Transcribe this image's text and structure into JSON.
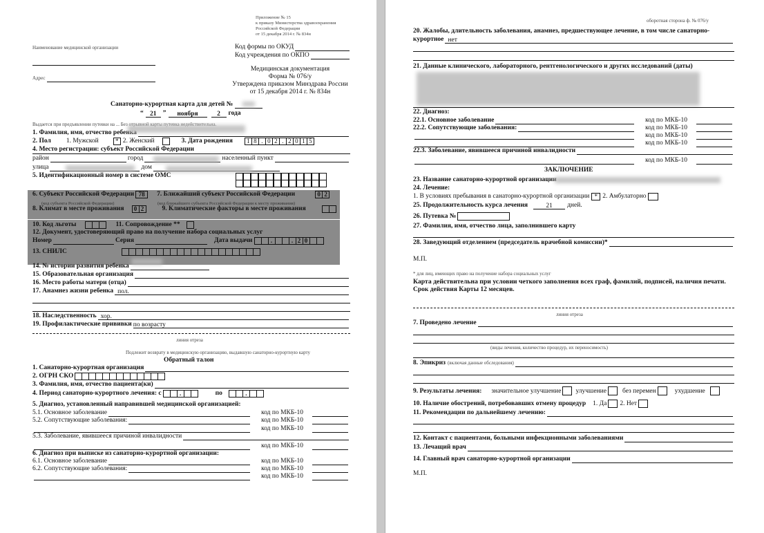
{
  "left": {
    "appendix": [
      "Приложение № 15",
      "к приказу Министерства здравоохранения",
      "Российской Федерации",
      "от 15 декабря 2014 г. № 834н"
    ],
    "org_name_label": "Наименование медицинской организации",
    "okud_label": "Код формы по ОКУД",
    "okpo_label": "Код учреждения по ОКПО",
    "address_label": "Адрес",
    "doc_info": [
      "Медицинская документация",
      "Форма № 076/у",
      "Утверждена приказом Минздрава России",
      "от 15 декабря 2014 г. № 834н"
    ],
    "title": "Санаторно-курортная карта для детей №",
    "date_day": "21",
    "date_month": "ноября",
    "date_year_suffix": "года",
    "issued_note": "Выдается при предъявлении путевки на ... Без отрывной карты путевка недействительна.",
    "f1": "1. Фамилия, имя, отчество ребенка",
    "f2": "2. Пол",
    "male": "1. Мужской",
    "male_mark": "*",
    "female": "2. Женский",
    "f3": "3. Дата рождения",
    "birth_date": [
      "1",
      "8",
      ".",
      "0",
      "2",
      ".",
      "2",
      "0",
      "1",
      "5"
    ],
    "f4": "4. Место регистрации: субъект Российской Федерации",
    "district": "район",
    "city": "город",
    "settlement": "населенный пункт",
    "street": "улица",
    "house": "дом",
    "f5": "5. Идентификационный номер в системе ОМС",
    "f6": "6. Субъект Российской Федерации",
    "f6_value": "78",
    "f6_note": "(код субъекта Российской Федерации)",
    "f7": "7. Ближайший субъект Российской Федерации",
    "f7_value": [
      "0",
      "2"
    ],
    "f7_note": "(код ближайшего субъекта Российской Федерации к месту проживания)",
    "f8": "8. Климат в месте проживания",
    "f8_value": [
      "0",
      "2"
    ],
    "f9": "9. Климатические факторы в месте проживания",
    "f10": "10. Код льготы",
    "f11": "11. Сопровождение **",
    "f12": "12. Документ, удостоверяющий право на получение набора социальных услуг",
    "number": "Номер",
    "series": "Серия",
    "issue_date": "Дата выдачи",
    "issue_date_boxes": [
      "",
      "",
      ".",
      "",
      "",
      ".",
      "2",
      "0",
      "",
      ""
    ],
    "f13": "13. СНИЛС",
    "f14": "14. № истории развития ребенка",
    "f15": "15. Образовательная организация",
    "f16": "16. Место работы матери (отца)",
    "f17": "17. Анамнез жизни ребенка",
    "f17_value": "пол.",
    "f18": "18. Наследственность",
    "f18_value": "хор.",
    "f19": "19. Профилактические прививки",
    "f19_value": "по возрасту",
    "cut_line": "линия отреза",
    "return_note": "Подлежит возврату в медицинскую организацию, выдавшую санаторно-курортную карту",
    "return_title": "Обратный талон",
    "r1": "1. Санаторно-курортная организация",
    "r2": "2. ОГРН СКО",
    "r3": "3. Фамилия, имя, отчество пациента(ки)",
    "r4": "4. Период санаторно-курортного лечения: с",
    "r4_to": "по",
    "r5": "5. Диагноз, установленный направившей медицинской организацией:",
    "r51": "5.1. Основное заболевание",
    "r52": "5.2. Сопутствующие заболевания:",
    "r53": "5.3. Заболевание, явившееся причиной инвалидности",
    "r6": "6. Диагноз при выписке из санаторно-курортной организации:",
    "r61": "6.1. Основное заболевание",
    "r62": "6.2. Сопутствующие заболевания:",
    "mkb": "код по МКБ-10"
  },
  "right": {
    "reverse_side": "оборотная сторона ф. № 076/у",
    "f20": "20. Жалобы, длительность заболевания, анамнез, предшествующее лечение, в том числе санаторно-",
    "f20b": "курортное",
    "f20_value": "нет",
    "f21": "21. Данные клинического, лабораторного, рентгенологического и других исследований (даты)",
    "f22": "22. Диагноз:",
    "f221": "22.1. Основное заболевание",
    "f222": "22.2. Сопутствующие заболевания:",
    "f223": "22.3. Заболевание, явившееся причиной инвалидности",
    "mkb": "код по МКБ-10",
    "conclusion": "ЗАКЛЮЧЕНИЕ",
    "f23": "23. Название санаторно-курортной организации",
    "f24": "24. Лечение:",
    "f24_1": "1. В условиях пребывания в санаторно-курортной организации",
    "f24_1_mark": "*",
    "f24_2": "2. Амбулаторно",
    "f25": "25. Продолжительность курса лечения",
    "f25_value": "21",
    "f25_unit": "дней.",
    "f26": "26. Путевка №",
    "f27": "27. Фамилия, имя, отчество лица, заполнившего карту",
    "f28": "28. Заведующий отделением (председатель врачебной комиссии)*",
    "stamp": "М.П.",
    "footnote": "* для лиц, имеющих право на получение набора социальных услуг",
    "validity1": "Карта действительна при условии четкого заполнения всех граф, фамилий, подписей, наличия печати.",
    "validity2": "Срок действия Карты 12 месяцев.",
    "cut_line": "линия отреза",
    "r7": "7. Проведено лечение",
    "r7_note": "(виды лечения, количество процедур, их переносимость)",
    "r8": "8. Эпикриз",
    "r8_note": "(включая данные обследования)",
    "r9": "9. Результаты лечения:",
    "r9_opts": [
      "значительное улучшение",
      "улучшение",
      "без перемен",
      "ухудшение"
    ],
    "r10": "10. Наличие обострений, потребовавших отмену процедур",
    "r10_yes": "1. Да",
    "r10_no": "2. Нет",
    "r11": "11. Рекомендации по дальнейшему лечению:",
    "r12": "12. Контакт с пациентами, больными инфекционными заболеваниями",
    "r13": "13. Лечащий врач",
    "r14": "14. Главный врач санаторно-курортной организации",
    "stamp2": "М.П."
  }
}
